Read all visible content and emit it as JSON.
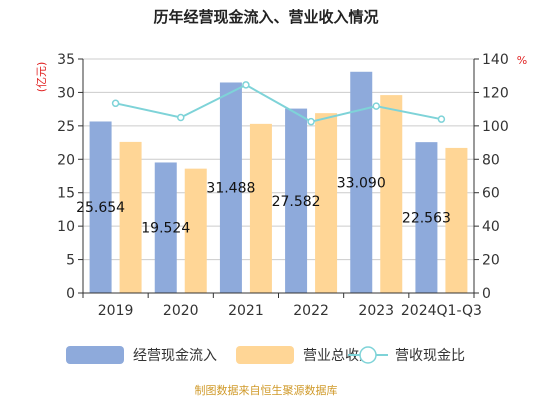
{
  "chart_data": {
    "type": "bar",
    "title": "历年经营现金流入、营业收入情况",
    "categories": [
      "2019",
      "2020",
      "2021",
      "2022",
      "2023",
      "2024Q1-Q3"
    ],
    "series": [
      {
        "name": "经营现金流入",
        "kind": "bar",
        "axis": "left",
        "color": "#8eaadb",
        "values": [
          25.654,
          19.524,
          31.488,
          27.582,
          33.09,
          22.563
        ],
        "labels": [
          "25.654",
          "19.524",
          "31.488",
          "27.582",
          "33.090",
          "22.563"
        ]
      },
      {
        "name": "营业总收入",
        "kind": "bar",
        "axis": "left",
        "color": "#ffd696",
        "values": [
          22.6,
          18.6,
          25.3,
          26.9,
          29.6,
          21.7
        ]
      },
      {
        "name": "营收现金比",
        "kind": "line",
        "axis": "right",
        "color": "#7ed3d8",
        "values": [
          113.5,
          105.0,
          124.5,
          102.5,
          111.8,
          104.0
        ]
      }
    ],
    "y_left": {
      "label": "(亿元)",
      "min": 0,
      "max": 35,
      "ticks": [
        0,
        5,
        10,
        15,
        20,
        25,
        30,
        35
      ]
    },
    "y_right": {
      "label": "%",
      "min": 0,
      "max": 140,
      "ticks": [
        0,
        20,
        40,
        60,
        80,
        100,
        120,
        140
      ]
    },
    "grid": true,
    "legend_position": "bottom"
  },
  "source": "制图数据来自恒生聚源数据库"
}
